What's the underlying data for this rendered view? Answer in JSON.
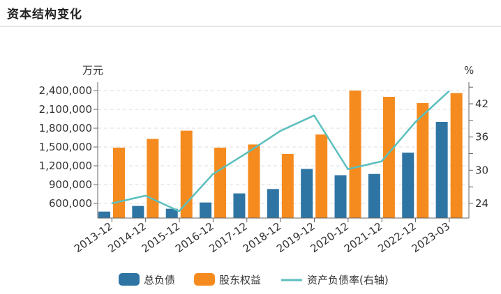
{
  "header": {
    "title": "资本结构变化"
  },
  "chart_data": {
    "type": "bar",
    "title": "资本结构变化",
    "categories": [
      "2013-12",
      "2014-12",
      "2015-12",
      "2016-12",
      "2017-12",
      "2018-12",
      "2019-12",
      "2020-12",
      "2021-12",
      "2022-12",
      "2023-03"
    ],
    "series": [
      {
        "name": "总负债",
        "type": "bar",
        "axis": "left",
        "color": "#2e75a4",
        "values": [
          470000,
          560000,
          515000,
          615000,
          760000,
          830000,
          1150000,
          1050000,
          1070000,
          1410000,
          1900000
        ]
      },
      {
        "name": "股东权益",
        "type": "bar",
        "axis": "left",
        "color": "#f58b1f",
        "values": [
          1490000,
          1630000,
          1760000,
          1490000,
          1540000,
          1390000,
          1700000,
          2400000,
          2300000,
          2200000,
          2360000
        ]
      },
      {
        "name": "资产负债率(右轴)",
        "type": "line",
        "axis": "right",
        "color": "#5cbfbd",
        "values": [
          24.0,
          25.4,
          22.6,
          29.3,
          33.1,
          37.1,
          39.9,
          30.2,
          31.6,
          38.7,
          44.3
        ]
      }
    ],
    "left_axis": {
      "unit": "万元",
      "ticks": [
        "600,000",
        "900,000",
        "1,200,000",
        "1,500,000",
        "1,800,000",
        "2,100,000",
        "2,400,000"
      ],
      "tick_values": [
        600000,
        900000,
        1200000,
        1500000,
        1800000,
        2100000,
        2400000
      ],
      "ylim": [
        370000,
        2400000
      ]
    },
    "right_axis": {
      "unit": "%",
      "ticks": [
        "24",
        "30",
        "36",
        "42"
      ],
      "tick_values": [
        24,
        30,
        36,
        42
      ],
      "ylim": [
        21.5,
        46
      ]
    },
    "grid": true,
    "legend": {
      "position": "bottom",
      "items": [
        "总负债",
        "股东权益",
        "资产负债率(右轴)"
      ]
    }
  }
}
